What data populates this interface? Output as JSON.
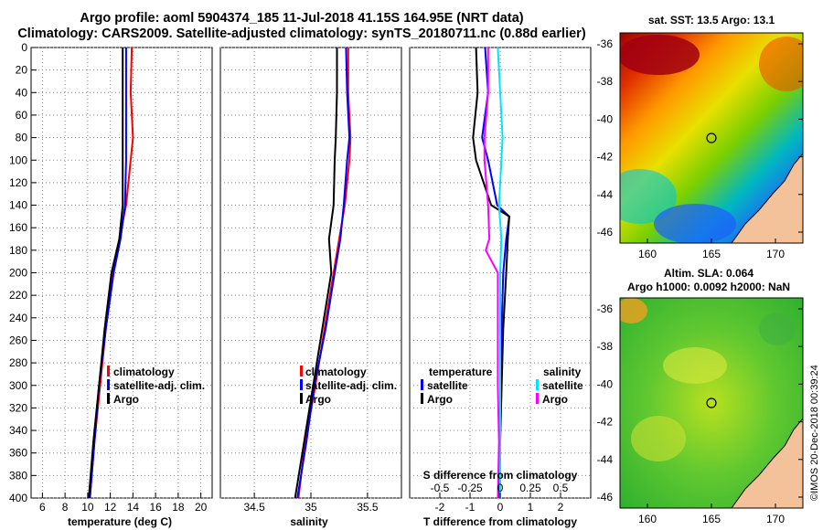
{
  "header": {
    "title_line1": "Argo profile: aoml 5904374_185 11-Jul-2018 41.15S 164.95E (NRT data)",
    "title_line2": "Climatology: CARS2009. Satellite-adjusted climatology: synTS_20180711.nc (0.88d earlier)"
  },
  "colors": {
    "climatology": "#ff0000",
    "satellite": "#0000ff",
    "argo": "#000000",
    "salinity_satellite": "#00e5ff",
    "salinity_argo": "#ff00ff"
  },
  "chart_data": [
    {
      "type": "line",
      "name": "temperature",
      "xlabel": "temperature (deg C)",
      "ylabel": "",
      "xlim": [
        5,
        21
      ],
      "ylim": [
        400,
        0
      ],
      "xticks": [
        6,
        8,
        10,
        12,
        14,
        16,
        18,
        20
      ],
      "yticks": [
        0,
        20,
        40,
        60,
        80,
        100,
        120,
        140,
        160,
        180,
        200,
        220,
        240,
        260,
        280,
        300,
        320,
        340,
        360,
        380,
        400
      ],
      "legend": [
        "climatology",
        "satellite-adj. clim.",
        "Argo"
      ],
      "legend_position": "lower-right",
      "series": [
        {
          "name": "climatology",
          "depth": [
            0,
            40,
            80,
            100,
            140,
            170,
            200,
            250,
            300,
            350,
            400
          ],
          "values": [
            13.9,
            13.8,
            14.0,
            13.8,
            13.4,
            12.8,
            12.2,
            11.6,
            11.1,
            10.6,
            10.2
          ]
        },
        {
          "name": "satellite-adj. clim.",
          "depth": [
            0,
            40,
            80,
            100,
            140,
            170,
            200,
            250,
            300,
            350,
            400
          ],
          "values": [
            13.4,
            13.4,
            13.4,
            13.4,
            13.3,
            12.9,
            12.3,
            11.6,
            11.0,
            10.6,
            10.2
          ]
        },
        {
          "name": "Argo",
          "depth": [
            0,
            40,
            80,
            100,
            140,
            170,
            200,
            250,
            300,
            350,
            400
          ],
          "values": [
            13.1,
            13.1,
            13.1,
            13.1,
            13.1,
            12.8,
            12.1,
            11.5,
            11.0,
            10.5,
            10.1
          ]
        }
      ]
    },
    {
      "type": "line",
      "name": "salinity",
      "xlabel": "salinity",
      "ylabel": "",
      "xlim": [
        34.2,
        35.8
      ],
      "ylim": [
        400,
        0
      ],
      "xticks": [
        34.5,
        35,
        35.5
      ],
      "legend": [
        "climatology",
        "satellite-adj. clim.",
        "Argo"
      ],
      "legend_position": "lower-right",
      "series": [
        {
          "name": "climatology",
          "depth": [
            0,
            40,
            80,
            100,
            140,
            170,
            200,
            250,
            300,
            350,
            400
          ],
          "values": [
            35.33,
            35.33,
            35.35,
            35.34,
            35.3,
            35.25,
            35.2,
            35.12,
            35.04,
            34.95,
            34.89
          ]
        },
        {
          "name": "satellite-adj. clim.",
          "depth": [
            0,
            40,
            80,
            100,
            140,
            170,
            200,
            250,
            300,
            350,
            400
          ],
          "values": [
            35.31,
            35.32,
            35.34,
            35.32,
            35.29,
            35.26,
            35.21,
            35.13,
            35.03,
            34.96,
            34.88
          ]
        },
        {
          "name": "Argo",
          "depth": [
            0,
            40,
            80,
            100,
            140,
            170,
            200,
            250,
            300,
            350,
            400
          ],
          "values": [
            35.23,
            35.23,
            35.22,
            35.21,
            35.2,
            35.16,
            35.18,
            35.1,
            35.02,
            34.94,
            34.86
          ]
        }
      ]
    },
    {
      "type": "line",
      "name": "difference",
      "xlabel": "T difference from climatology",
      "top_axis_label": "S difference from climatology",
      "xlim": [
        -3,
        3
      ],
      "ylim": [
        400,
        0
      ],
      "xticks": [
        -2,
        -1,
        0,
        1,
        2
      ],
      "top_xticks": [
        -0.5,
        -0.25,
        0,
        0.25,
        0.5
      ],
      "legend_temperature_heading": "temperature",
      "legend_salinity_heading": "salinity",
      "legend_temperature": [
        "satellite",
        "Argo"
      ],
      "legend_salinity": [
        "satellite",
        "Argo"
      ],
      "series": [
        {
          "name": "T satellite",
          "depth": [
            0,
            40,
            80,
            100,
            140,
            150,
            170,
            200,
            250,
            300,
            350,
            400
          ],
          "values": [
            -0.5,
            -0.4,
            -0.6,
            -0.4,
            -0.1,
            0.3,
            0.2,
            0.1,
            0.05,
            0.0,
            0.0,
            0.0
          ]
        },
        {
          "name": "T Argo",
          "depth": [
            0,
            40,
            80,
            100,
            140,
            150,
            170,
            200,
            250,
            300,
            350,
            400
          ],
          "values": [
            -0.8,
            -0.75,
            -0.9,
            -0.8,
            -0.3,
            0.3,
            0.25,
            0.2,
            0.1,
            0.05,
            0.0,
            -0.05
          ]
        },
        {
          "name": "S satellite",
          "depth": [
            0,
            40,
            80,
            100,
            140,
            170,
            200,
            250,
            300,
            350,
            400
          ],
          "values": [
            -0.02,
            0.0,
            0.02,
            0.01,
            -0.01,
            0.01,
            0.0,
            0.0,
            0.0,
            0.0,
            0.0
          ]
        },
        {
          "name": "S Argo",
          "depth": [
            0,
            40,
            80,
            100,
            140,
            170,
            180,
            200,
            250,
            300,
            350,
            400
          ],
          "values": [
            -0.1,
            -0.1,
            -0.13,
            -0.13,
            -0.1,
            -0.09,
            -0.12,
            -0.02,
            -0.02,
            -0.02,
            -0.01,
            -0.02
          ]
        }
      ]
    }
  ],
  "maps": {
    "sst": {
      "title": "sat. SST: 13.5 Argo: 13.1",
      "yticks": [
        "-36",
        "-38",
        "-40",
        "-42",
        "-44",
        "-46"
      ],
      "xticks": [
        "160",
        "165",
        "170"
      ]
    },
    "sla": {
      "title_line1": "Altim. SLA: 0.064",
      "title_line2": "Argo h1000: 0.0092 h2000: NaN",
      "yticks": [
        "-36",
        "-38",
        "-40",
        "-42",
        "-44",
        "-46"
      ],
      "xticks": [
        "160",
        "165",
        "170"
      ]
    }
  },
  "footer": "©IMOS 20-Dec-2018 00:39:24"
}
